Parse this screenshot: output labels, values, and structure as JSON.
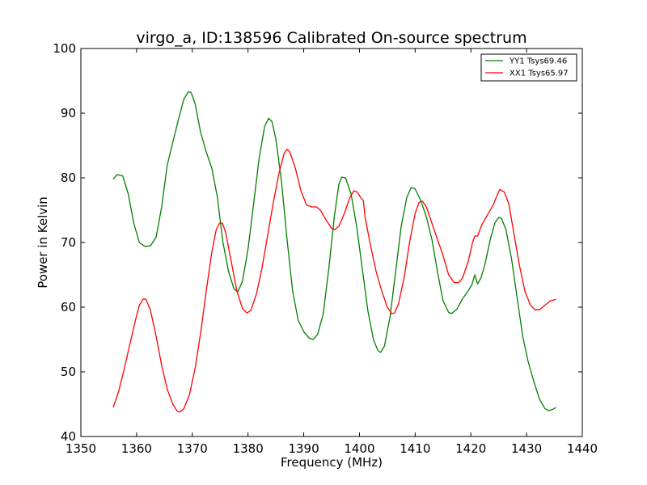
{
  "chart_data": {
    "type": "line",
    "title": "virgo_a, ID:138596 Calibrated On-source spectrum",
    "xlabel": "Frequency (MHz)",
    "ylabel": "Power in Kelvin",
    "xlim": [
      1350,
      1440
    ],
    "ylim": [
      40,
      100
    ],
    "xticks": [
      1350,
      1360,
      1370,
      1380,
      1390,
      1400,
      1410,
      1420,
      1430,
      1440
    ],
    "yticks": [
      40,
      50,
      60,
      70,
      80,
      90,
      100
    ],
    "grid": false,
    "legend_position": "top-right",
    "series": [
      {
        "name": "YY1 Tsys69.46",
        "color": "#008000",
        "points": [
          [
            1355.8,
            79.8
          ],
          [
            1356.5,
            80.5
          ],
          [
            1357.5,
            80.3
          ],
          [
            1358.5,
            77.5
          ],
          [
            1359.5,
            73.0
          ],
          [
            1360.5,
            70.0
          ],
          [
            1361.5,
            69.4
          ],
          [
            1362.5,
            69.5
          ],
          [
            1363.5,
            70.8
          ],
          [
            1364.5,
            75.5
          ],
          [
            1365.5,
            82.0
          ],
          [
            1366.5,
            85.5
          ],
          [
            1367.5,
            89.0
          ],
          [
            1368.5,
            92.2
          ],
          [
            1369.3,
            93.3
          ],
          [
            1369.8,
            93.2
          ],
          [
            1370.5,
            91.5
          ],
          [
            1371.5,
            87.0
          ],
          [
            1372.5,
            84.0
          ],
          [
            1373.5,
            81.5
          ],
          [
            1374.5,
            77.0
          ],
          [
            1375.5,
            70.0
          ],
          [
            1376.5,
            65.5
          ],
          [
            1377.5,
            62.8
          ],
          [
            1378.2,
            62.4
          ],
          [
            1379.0,
            64.0
          ],
          [
            1380.0,
            69.0
          ],
          [
            1381.0,
            76.0
          ],
          [
            1382.0,
            83.0
          ],
          [
            1383.0,
            88.0
          ],
          [
            1383.7,
            89.2
          ],
          [
            1384.3,
            88.7
          ],
          [
            1385.0,
            86.0
          ],
          [
            1386.0,
            79.5
          ],
          [
            1387.0,
            70.5
          ],
          [
            1388.0,
            62.5
          ],
          [
            1389.0,
            58.0
          ],
          [
            1390.0,
            56.2
          ],
          [
            1391.0,
            55.2
          ],
          [
            1391.7,
            55.0
          ],
          [
            1392.5,
            55.8
          ],
          [
            1393.5,
            59.0
          ],
          [
            1394.5,
            66.0
          ],
          [
            1395.5,
            74.0
          ],
          [
            1396.3,
            79.0
          ],
          [
            1396.8,
            80.1
          ],
          [
            1397.5,
            80.0
          ],
          [
            1398.5,
            77.5
          ],
          [
            1399.5,
            72.5
          ],
          [
            1400.5,
            66.0
          ],
          [
            1401.5,
            59.5
          ],
          [
            1402.5,
            55.0
          ],
          [
            1403.3,
            53.3
          ],
          [
            1403.8,
            53.0
          ],
          [
            1404.5,
            54.0
          ],
          [
            1405.5,
            58.5
          ],
          [
            1406.5,
            65.5
          ],
          [
            1407.5,
            72.5
          ],
          [
            1408.5,
            77.0
          ],
          [
            1409.3,
            78.5
          ],
          [
            1410.0,
            78.3
          ],
          [
            1411.0,
            76.5
          ],
          [
            1412.0,
            74.0
          ],
          [
            1413.0,
            70.5
          ],
          [
            1414.0,
            65.5
          ],
          [
            1415.0,
            61.0
          ],
          [
            1416.0,
            59.2
          ],
          [
            1416.5,
            59.0
          ],
          [
            1417.5,
            59.7
          ],
          [
            1418.5,
            61.3
          ],
          [
            1419.5,
            62.5
          ],
          [
            1420.2,
            63.5
          ],
          [
            1420.7,
            65.0
          ],
          [
            1421.2,
            63.6
          ],
          [
            1421.8,
            64.5
          ],
          [
            1422.5,
            66.5
          ],
          [
            1423.5,
            70.5
          ],
          [
            1424.3,
            73.0
          ],
          [
            1425.0,
            73.9
          ],
          [
            1425.5,
            73.7
          ],
          [
            1426.3,
            72.0
          ],
          [
            1427.3,
            67.5
          ],
          [
            1428.3,
            61.5
          ],
          [
            1429.3,
            55.5
          ],
          [
            1430.3,
            51.5
          ],
          [
            1431.3,
            48.5
          ],
          [
            1432.3,
            45.8
          ],
          [
            1433.3,
            44.3
          ],
          [
            1434.0,
            44.0
          ],
          [
            1434.7,
            44.2
          ],
          [
            1435.3,
            44.5
          ]
        ]
      },
      {
        "name": "XX1 Tsys65.97",
        "color": "#ff0000",
        "points": [
          [
            1355.8,
            44.5
          ],
          [
            1356.8,
            47.0
          ],
          [
            1357.8,
            50.5
          ],
          [
            1358.8,
            54.3
          ],
          [
            1359.8,
            58.0
          ],
          [
            1360.5,
            60.3
          ],
          [
            1361.2,
            61.3
          ],
          [
            1361.7,
            61.2
          ],
          [
            1362.5,
            59.5
          ],
          [
            1363.5,
            55.5
          ],
          [
            1364.5,
            51.0
          ],
          [
            1365.5,
            47.3
          ],
          [
            1366.5,
            45.0
          ],
          [
            1367.3,
            43.9
          ],
          [
            1367.8,
            43.8
          ],
          [
            1368.5,
            44.3
          ],
          [
            1369.5,
            46.5
          ],
          [
            1370.5,
            50.5
          ],
          [
            1371.5,
            56.0
          ],
          [
            1372.5,
            62.5
          ],
          [
            1373.5,
            68.5
          ],
          [
            1374.3,
            72.0
          ],
          [
            1374.9,
            73.0
          ],
          [
            1375.4,
            73.0
          ],
          [
            1376.0,
            71.5
          ],
          [
            1377.0,
            67.0
          ],
          [
            1378.0,
            62.5
          ],
          [
            1379.0,
            59.8
          ],
          [
            1379.8,
            59.1
          ],
          [
            1380.5,
            59.5
          ],
          [
            1381.5,
            62.0
          ],
          [
            1382.5,
            66.0
          ],
          [
            1383.5,
            71.0
          ],
          [
            1384.5,
            76.0
          ],
          [
            1385.5,
            80.5
          ],
          [
            1386.5,
            83.8
          ],
          [
            1387.0,
            84.4
          ],
          [
            1387.5,
            84.0
          ],
          [
            1388.5,
            81.5
          ],
          [
            1389.5,
            78.0
          ],
          [
            1390.5,
            75.8
          ],
          [
            1391.5,
            75.5
          ],
          [
            1392.3,
            75.5
          ],
          [
            1393.0,
            75.0
          ],
          [
            1394.0,
            73.5
          ],
          [
            1395.0,
            72.2
          ],
          [
            1395.6,
            72.0
          ],
          [
            1396.3,
            72.5
          ],
          [
            1397.3,
            74.5
          ],
          [
            1398.3,
            77.0
          ],
          [
            1399.0,
            78.0
          ],
          [
            1399.6,
            77.8
          ],
          [
            1400.2,
            77.0
          ],
          [
            1400.7,
            76.5
          ],
          [
            1401.0,
            74.0
          ],
          [
            1402.0,
            69.5
          ],
          [
            1403.0,
            65.5
          ],
          [
            1404.0,
            62.5
          ],
          [
            1405.0,
            60.0
          ],
          [
            1405.8,
            59.0
          ],
          [
            1406.3,
            59.1
          ],
          [
            1407.0,
            60.5
          ],
          [
            1408.0,
            64.5
          ],
          [
            1409.0,
            70.0
          ],
          [
            1410.0,
            74.5
          ],
          [
            1410.7,
            76.2
          ],
          [
            1411.3,
            76.4
          ],
          [
            1412.0,
            75.5
          ],
          [
            1413.0,
            73.0
          ],
          [
            1414.0,
            70.5
          ],
          [
            1415.0,
            68.0
          ],
          [
            1416.0,
            65.0
          ],
          [
            1417.0,
            63.8
          ],
          [
            1417.8,
            63.8
          ],
          [
            1418.5,
            64.5
          ],
          [
            1419.5,
            67.0
          ],
          [
            1420.3,
            70.0
          ],
          [
            1420.7,
            71.0
          ],
          [
            1421.2,
            71.0
          ],
          [
            1422.0,
            72.8
          ],
          [
            1423.0,
            74.3
          ],
          [
            1424.0,
            75.8
          ],
          [
            1424.8,
            77.5
          ],
          [
            1425.2,
            78.2
          ],
          [
            1426.0,
            77.8
          ],
          [
            1426.8,
            76.0
          ],
          [
            1427.7,
            71.5
          ],
          [
            1428.7,
            66.5
          ],
          [
            1429.7,
            62.5
          ],
          [
            1430.7,
            60.3
          ],
          [
            1431.5,
            59.6
          ],
          [
            1432.3,
            59.6
          ],
          [
            1433.3,
            60.3
          ],
          [
            1434.3,
            61.0
          ],
          [
            1435.3,
            61.2
          ]
        ]
      }
    ]
  }
}
